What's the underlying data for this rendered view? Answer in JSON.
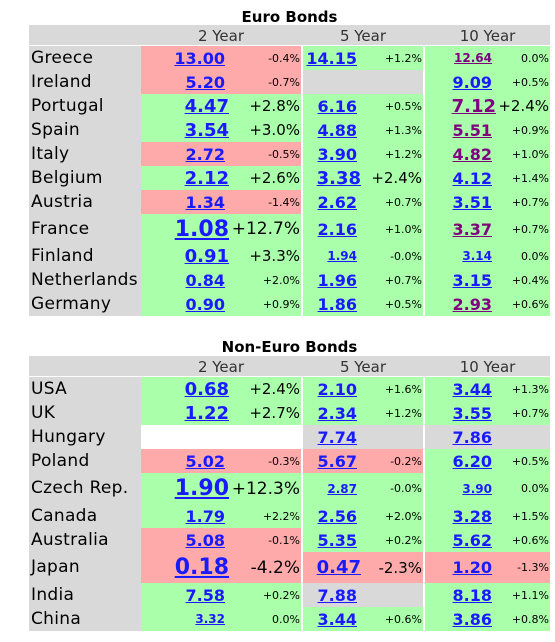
{
  "colors": {
    "green": "#aaffaa",
    "pink": "#ffaaaa",
    "grey": "#d9d9d9",
    "link": "#1a1aff",
    "visited": "#800080"
  },
  "euro": {
    "title": "Euro Bonds",
    "headers": [
      "2 Year",
      "5 Year",
      "10 Year"
    ],
    "rows": [
      {
        "name": "Greece",
        "cells": [
          {
            "v": "13.00",
            "c": "-0.4%",
            "bg": "pink",
            "size": "m"
          },
          {
            "v": "14.15",
            "c": "+1.2%",
            "bg": "green",
            "size": "m"
          },
          {
            "v": "12.64",
            "c": "0.0%",
            "bg": "green",
            "size": "s",
            "purple": true
          }
        ]
      },
      {
        "name": "Ireland",
        "cells": [
          {
            "v": "5.20",
            "c": "-0.7%",
            "bg": "pink",
            "size": "m"
          },
          {
            "v": "",
            "c": "",
            "bg": "grey",
            "size": "m"
          },
          {
            "v": "9.09",
            "c": "+0.5%",
            "bg": "green",
            "size": "m"
          }
        ]
      },
      {
        "name": "Portugal",
        "cells": [
          {
            "v": "4.47",
            "c": "+2.8%",
            "bg": "green",
            "size": "l"
          },
          {
            "v": "6.16",
            "c": "+0.5%",
            "bg": "green",
            "size": "m"
          },
          {
            "v": "7.12",
            "c": "+2.4%",
            "bg": "green",
            "size": "l",
            "purple": true
          }
        ]
      },
      {
        "name": "Spain",
        "cells": [
          {
            "v": "3.54",
            "c": "+3.0%",
            "bg": "green",
            "size": "l"
          },
          {
            "v": "4.88",
            "c": "+1.3%",
            "bg": "green",
            "size": "m"
          },
          {
            "v": "5.51",
            "c": "+0.9%",
            "bg": "green",
            "size": "m",
            "purple": true
          }
        ]
      },
      {
        "name": "Italy",
        "cells": [
          {
            "v": "2.72",
            "c": "-0.5%",
            "bg": "pink",
            "size": "m"
          },
          {
            "v": "3.90",
            "c": "+1.2%",
            "bg": "green",
            "size": "m"
          },
          {
            "v": "4.82",
            "c": "+1.0%",
            "bg": "green",
            "size": "m",
            "purple": true
          }
        ]
      },
      {
        "name": "Belgium",
        "cells": [
          {
            "v": "2.12",
            "c": "+2.6%",
            "bg": "green",
            "size": "l"
          },
          {
            "v": "3.38",
            "c": "+2.4%",
            "bg": "green",
            "size": "l"
          },
          {
            "v": "4.12",
            "c": "+1.4%",
            "bg": "green",
            "size": "m"
          }
        ]
      },
      {
        "name": "Austria",
        "cells": [
          {
            "v": "1.34",
            "c": "-1.4%",
            "bg": "pink",
            "size": "m"
          },
          {
            "v": "2.62",
            "c": "+0.7%",
            "bg": "green",
            "size": "m"
          },
          {
            "v": "3.51",
            "c": "+0.7%",
            "bg": "green",
            "size": "m"
          }
        ]
      },
      {
        "name": "France",
        "cells": [
          {
            "v": "1.08",
            "c": "+12.7%",
            "bg": "green",
            "size": "xl"
          },
          {
            "v": "2.16",
            "c": "+1.0%",
            "bg": "green",
            "size": "m"
          },
          {
            "v": "3.37",
            "c": "+0.7%",
            "bg": "green",
            "size": "m",
            "purple": true
          }
        ]
      },
      {
        "name": "Finland",
        "cells": [
          {
            "v": "0.91",
            "c": "+3.3%",
            "bg": "green",
            "size": "l"
          },
          {
            "v": "1.94",
            "c": "-0.0%",
            "bg": "green",
            "size": "s"
          },
          {
            "v": "3.14",
            "c": "0.0%",
            "bg": "green",
            "size": "s"
          }
        ]
      },
      {
        "name": "Netherlands",
        "cells": [
          {
            "v": "0.84",
            "c": "+2.0%",
            "bg": "green",
            "size": "m"
          },
          {
            "v": "1.96",
            "c": "+0.7%",
            "bg": "green",
            "size": "m"
          },
          {
            "v": "3.15",
            "c": "+0.4%",
            "bg": "green",
            "size": "m"
          }
        ]
      },
      {
        "name": "Germany",
        "cells": [
          {
            "v": "0.90",
            "c": "+0.9%",
            "bg": "green",
            "size": "m"
          },
          {
            "v": "1.86",
            "c": "+0.5%",
            "bg": "green",
            "size": "m"
          },
          {
            "v": "2.93",
            "c": "+0.6%",
            "bg": "green",
            "size": "m",
            "purple": true
          }
        ]
      }
    ]
  },
  "nonEuro": {
    "title": "Non-Euro Bonds",
    "headers": [
      "2 Year",
      "5 Year",
      "10 Year"
    ],
    "rows": [
      {
        "name": "USA",
        "cells": [
          {
            "v": "0.68",
            "c": "+2.4%",
            "bg": "green",
            "size": "l"
          },
          {
            "v": "2.10",
            "c": "+1.6%",
            "bg": "green",
            "size": "m"
          },
          {
            "v": "3.44",
            "c": "+1.3%",
            "bg": "green",
            "size": "m"
          }
        ]
      },
      {
        "name": "UK",
        "cells": [
          {
            "v": "1.22",
            "c": "+2.7%",
            "bg": "green",
            "size": "l"
          },
          {
            "v": "2.34",
            "c": "+1.2%",
            "bg": "green",
            "size": "m"
          },
          {
            "v": "3.55",
            "c": "+0.7%",
            "bg": "green",
            "size": "m"
          }
        ]
      },
      {
        "name": "Hungary",
        "cells": [
          {
            "v": "",
            "c": "",
            "bg": "white",
            "size": "m"
          },
          {
            "v": "7.74",
            "c": "",
            "bg": "grey",
            "size": "m"
          },
          {
            "v": "7.86",
            "c": "",
            "bg": "grey",
            "size": "m"
          }
        ]
      },
      {
        "name": "Poland",
        "cells": [
          {
            "v": "5.02",
            "c": "-0.3%",
            "bg": "pink",
            "size": "m"
          },
          {
            "v": "5.67",
            "c": "-0.2%",
            "bg": "pink",
            "size": "m"
          },
          {
            "v": "6.20",
            "c": "+0.5%",
            "bg": "green",
            "size": "m"
          }
        ]
      },
      {
        "name": "Czech Rep.",
        "cells": [
          {
            "v": "1.90",
            "c": "+12.3%",
            "bg": "green",
            "size": "xl"
          },
          {
            "v": "2.87",
            "c": "-0.0%",
            "bg": "green",
            "size": "s"
          },
          {
            "v": "3.90",
            "c": "0.0%",
            "bg": "green",
            "size": "s"
          }
        ]
      },
      {
        "name": "Canada",
        "cells": [
          {
            "v": "1.79",
            "c": "+2.2%",
            "bg": "green",
            "size": "m"
          },
          {
            "v": "2.56",
            "c": "+2.0%",
            "bg": "green",
            "size": "m"
          },
          {
            "v": "3.28",
            "c": "+1.5%",
            "bg": "green",
            "size": "m"
          }
        ]
      },
      {
        "name": "Australia",
        "cells": [
          {
            "v": "5.08",
            "c": "-0.1%",
            "bg": "pink",
            "size": "m"
          },
          {
            "v": "5.35",
            "c": "+0.2%",
            "bg": "green",
            "size": "m"
          },
          {
            "v": "5.62",
            "c": "+0.6%",
            "bg": "green",
            "size": "m"
          }
        ]
      },
      {
        "name": "Japan",
        "cells": [
          {
            "v": "0.18",
            "c": "-4.2%",
            "bg": "pink",
            "size": "xl"
          },
          {
            "v": "0.47",
            "c": "-2.3%",
            "bg": "pink",
            "size": "l"
          },
          {
            "v": "1.20",
            "c": "-1.3%",
            "bg": "pink",
            "size": "m"
          }
        ]
      },
      {
        "name": "India",
        "cells": [
          {
            "v": "7.58",
            "c": "+0.2%",
            "bg": "green",
            "size": "m"
          },
          {
            "v": "7.88",
            "c": "",
            "bg": "grey",
            "size": "m"
          },
          {
            "v": "8.18",
            "c": "+1.1%",
            "bg": "green",
            "size": "m"
          }
        ]
      },
      {
        "name": "China",
        "cells": [
          {
            "v": "3.32",
            "c": "0.0%",
            "bg": "green",
            "size": "s"
          },
          {
            "v": "3.44",
            "c": "+0.6%",
            "bg": "green",
            "size": "m"
          },
          {
            "v": "3.86",
            "c": "+0.8%",
            "bg": "green",
            "size": "m"
          }
        ]
      }
    ]
  }
}
